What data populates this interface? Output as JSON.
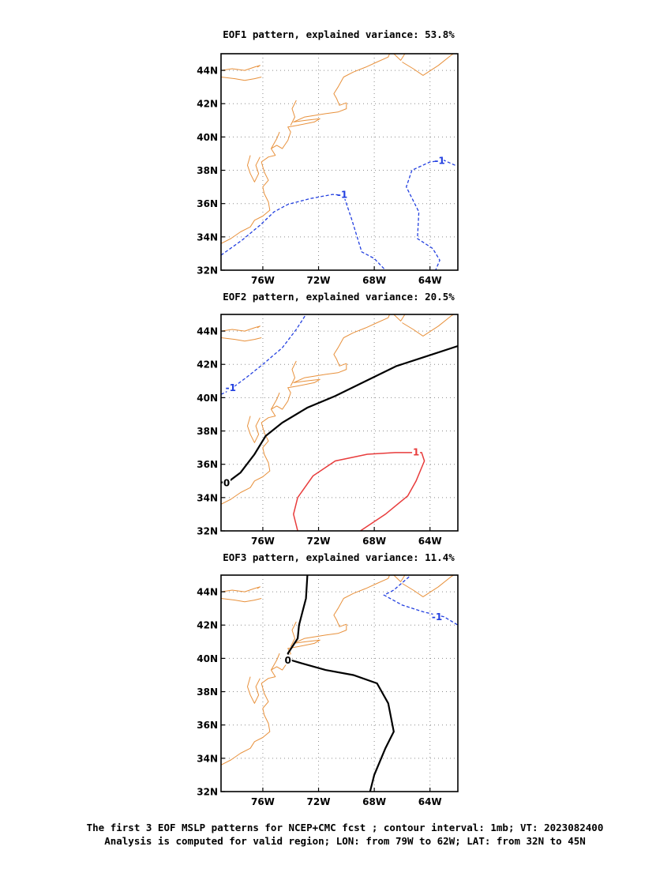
{
  "map": {
    "lon_range": [
      -79,
      -62
    ],
    "lat_range": [
      32,
      45
    ],
    "lon_ticks": [
      -76,
      -72,
      -68,
      -64
    ],
    "lat_ticks": [
      32,
      34,
      36,
      38,
      40,
      42,
      44
    ],
    "lon_tick_labels": [
      "76W",
      "72W",
      "68W",
      "64W"
    ],
    "lat_tick_labels": [
      "32N",
      "34N",
      "36N",
      "38N",
      "40N",
      "42N",
      "44N"
    ],
    "gridlines": true,
    "coastline_color": "#e8913c"
  },
  "colors": {
    "negative": "#2340e0",
    "zero": "#000000",
    "positive": "#e83c3c"
  },
  "panels": [
    {
      "title": "EOF1 pattern, explained variance: 53.8%",
      "contours": [
        {
          "level": -1,
          "label": "-1",
          "label_at": [
            -70.3,
            36.55
          ],
          "points": [
            [
              -79,
              32.9
            ],
            [
              -77.5,
              33.8
            ],
            [
              -76.2,
              34.7
            ],
            [
              -75.2,
              35.5
            ],
            [
              -74.2,
              35.95
            ],
            [
              -72.6,
              36.3
            ],
            [
              -71.0,
              36.55
            ],
            [
              -70.2,
              36.5
            ],
            [
              -69.6,
              35.0
            ],
            [
              -68.9,
              33.1
            ],
            [
              -68.0,
              32.7
            ],
            [
              -67.2,
              32.0
            ]
          ]
        },
        {
          "level": -1,
          "label": "-1",
          "label_at": [
            -63.3,
            38.6
          ],
          "points": [
            [
              -62.2,
              38.3
            ],
            [
              -63.0,
              38.6
            ],
            [
              -64.0,
              38.5
            ],
            [
              -65.3,
              38.0
            ],
            [
              -65.7,
              37.0
            ],
            [
              -64.8,
              35.5
            ],
            [
              -64.9,
              33.9
            ],
            [
              -63.8,
              33.3
            ],
            [
              -63.3,
              32.6
            ],
            [
              -63.6,
              32.0
            ]
          ]
        }
      ]
    },
    {
      "title": "EOF2 pattern, explained variance: 20.5%",
      "contours": [
        {
          "level": -1,
          "label": "-1",
          "label_at": [
            -78.3,
            40.6
          ],
          "points": [
            [
              -79,
              40.2
            ],
            [
              -78.5,
              40.4
            ],
            [
              -77.2,
              41.2
            ],
            [
              -76.0,
              42.0
            ],
            [
              -74.6,
              43.0
            ],
            [
              -73.6,
              44.1
            ],
            [
              -72.9,
              45.0
            ]
          ]
        },
        {
          "level": 0,
          "label": "0",
          "label_at": [
            -78.6,
            34.9
          ],
          "points": [
            [
              -79,
              34.9
            ],
            [
              -78.4,
              35.0
            ],
            [
              -77.6,
              35.5
            ],
            [
              -76.6,
              36.6
            ],
            [
              -75.8,
              37.7
            ],
            [
              -74.6,
              38.5
            ],
            [
              -72.8,
              39.4
            ],
            [
              -70.8,
              40.1
            ],
            [
              -68.6,
              41.0
            ],
            [
              -66.4,
              41.9
            ],
            [
              -64.2,
              42.5
            ],
            [
              -62,
              43.1
            ]
          ]
        },
        {
          "level": 1,
          "label": "1",
          "label_at": [
            -65.0,
            36.75
          ],
          "points": [
            [
              -73.5,
              32.0
            ],
            [
              -73.8,
              33.0
            ],
            [
              -73.5,
              34.0
            ],
            [
              -72.4,
              35.3
            ],
            [
              -70.8,
              36.2
            ],
            [
              -68.5,
              36.6
            ],
            [
              -66.5,
              36.7
            ],
            [
              -64.6,
              36.7
            ],
            [
              -64.4,
              36.2
            ],
            [
              -65.0,
              35.0
            ],
            [
              -65.6,
              34.1
            ],
            [
              -67.2,
              33.0
            ],
            [
              -69.0,
              32.0
            ]
          ]
        }
      ]
    },
    {
      "title": "EOF3 pattern, explained variance: 11.4%",
      "contours": [
        {
          "level": -1,
          "label": "-1",
          "label_at": [
            -63.5,
            42.5
          ],
          "points": [
            [
              -65.5,
              44.9
            ],
            [
              -66.6,
              44.1
            ],
            [
              -67.3,
              43.8
            ],
            [
              -66.0,
              43.2
            ],
            [
              -64.5,
              42.8
            ],
            [
              -63.0,
              42.5
            ],
            [
              -62,
              42.0
            ]
          ]
        },
        {
          "level": 0,
          "label": "0",
          "label_at": [
            -74.2,
            39.9
          ],
          "points": [
            [
              -72.8,
              45.0
            ],
            [
              -72.9,
              43.6
            ],
            [
              -73.4,
              42.0
            ],
            [
              -73.5,
              41.2
            ],
            [
              -74.2,
              40.3
            ],
            [
              -74.0,
              39.9
            ],
            [
              -73.2,
              39.7
            ],
            [
              -71.5,
              39.3
            ],
            [
              -69.5,
              39.0
            ],
            [
              -67.8,
              38.5
            ],
            [
              -67.0,
              37.3
            ],
            [
              -66.6,
              35.6
            ],
            [
              -67.2,
              34.6
            ],
            [
              -68.0,
              33.0
            ],
            [
              -68.3,
              32.0
            ]
          ]
        }
      ]
    }
  ],
  "caption": [
    "The first 3 EOF MSLP patterns for NCEP+CMC fcst ; contour interval: 1mb; VT: 2023082400",
    "Analysis is computed for valid region; LON: from 79W to 62W; LAT: from 32N to 45N"
  ]
}
